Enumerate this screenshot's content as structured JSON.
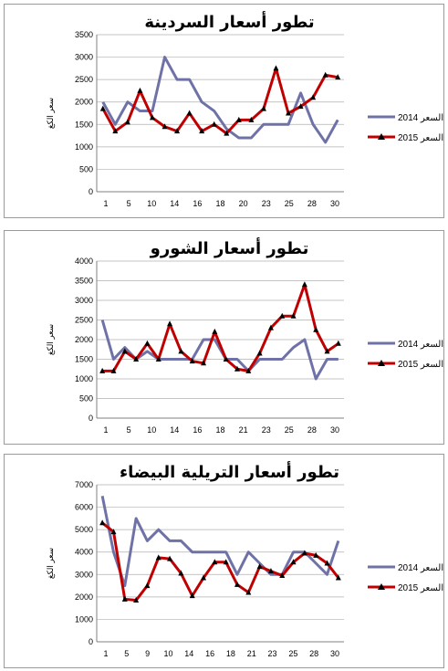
{
  "colors": {
    "s2014": "#6f72a6",
    "s2015": "#c00000",
    "marker": "#000000",
    "axis": "#808080",
    "grid": "#b0b0b0"
  },
  "chart_data": [
    {
      "type": "line",
      "title": "تطور أسعار السردينة",
      "ylabel": "سعر الكغ",
      "ylim": [
        0,
        3500
      ],
      "yticks": [
        0,
        500,
        1000,
        1500,
        2000,
        2500,
        3000,
        3500
      ],
      "x_tick_labels": [
        "1",
        "5",
        "10",
        "14",
        "16",
        "18",
        "20",
        "23",
        "25",
        "28",
        "30"
      ],
      "series": [
        {
          "name": "2014 السعر",
          "values": [
            2000,
            1500,
            2000,
            1800,
            1800,
            3000,
            2500,
            2500,
            2000,
            1800,
            1400,
            1200,
            1200,
            1500,
            1500,
            1500,
            2200,
            1500,
            1100,
            1600
          ]
        },
        {
          "name": "2015 السعر",
          "values": [
            1850,
            1350,
            1550,
            2250,
            1650,
            1450,
            1350,
            1750,
            1350,
            1500,
            1300,
            1600,
            1600,
            1850,
            2750,
            1750,
            1900,
            2100,
            2600,
            2550
          ]
        }
      ]
    },
    {
      "type": "line",
      "title": "تطور أسعار الشورو",
      "ylabel": "سعر الكغ",
      "ylim": [
        0,
        4000
      ],
      "yticks": [
        0,
        500,
        1000,
        1500,
        2000,
        2500,
        3000,
        3500,
        4000
      ],
      "x_tick_labels": [
        "1",
        "5",
        "10",
        "14",
        "16",
        "18",
        "21",
        "23",
        "25",
        "28",
        "30"
      ],
      "series": [
        {
          "name": "2014 السعر",
          "values": [
            2500,
            1500,
            1800,
            1500,
            1700,
            1500,
            1500,
            1500,
            1500,
            2000,
            2000,
            1500,
            1500,
            1200,
            1500,
            1500,
            1500,
            1800,
            2000,
            1000,
            1500,
            1500
          ]
        },
        {
          "name": "2015 السعر",
          "values": [
            1200,
            1200,
            1700,
            1500,
            1900,
            1500,
            2400,
            1700,
            1450,
            1400,
            2200,
            1500,
            1250,
            1200,
            1650,
            2300,
            2600,
            2600,
            3400,
            2250,
            1700,
            1900
          ]
        }
      ]
    },
    {
      "type": "line",
      "title": "تطور أسعار التريلية البيضاء",
      "ylabel": "سعر الكغ",
      "ylim": [
        0,
        7000
      ],
      "yticks": [
        0,
        1000,
        2000,
        3000,
        4000,
        5000,
        6000,
        7000
      ],
      "x_tick_labels": [
        "1",
        "5",
        "9",
        "10",
        "14",
        "16",
        "18",
        "21",
        "23",
        "25",
        "28",
        "30"
      ],
      "series": [
        {
          "name": "2014 السعر",
          "values": [
            6500,
            4000,
            2500,
            5500,
            4500,
            5000,
            4500,
            4500,
            4000,
            4000,
            4000,
            4000,
            3000,
            4000,
            3500,
            3000,
            3000,
            4000,
            4000,
            3500,
            3000,
            4500
          ]
        },
        {
          "name": "2015 السعر",
          "values": [
            5300,
            4900,
            1900,
            1850,
            2500,
            3750,
            3700,
            3050,
            2050,
            2850,
            3550,
            3550,
            2550,
            2200,
            3350,
            3150,
            2950,
            3550,
            3950,
            3850,
            3500,
            2850
          ]
        }
      ]
    }
  ]
}
